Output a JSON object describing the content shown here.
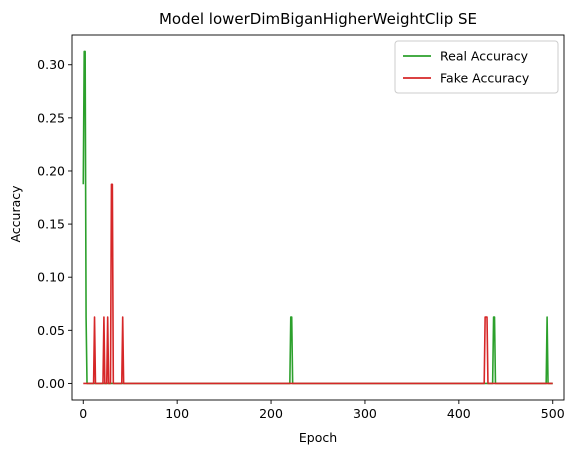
{
  "chart_data": {
    "type": "line",
    "title": "Model lowerDimBiganHigherWeightClip SE",
    "xlabel": "Epoch",
    "ylabel": "Accuracy",
    "xlim": [
      -12,
      512
    ],
    "ylim": [
      -0.0156,
      0.328
    ],
    "xticks": [
      0,
      100,
      200,
      300,
      400,
      500
    ],
    "yticks": [
      0.0,
      0.05,
      0.1,
      0.15,
      0.2,
      0.25,
      0.3
    ],
    "ytick_labels": [
      "0.00",
      "0.05",
      "0.10",
      "0.15",
      "0.20",
      "0.25",
      "0.30"
    ],
    "xtick_labels": [
      "0",
      "100",
      "200",
      "300",
      "400",
      "500"
    ],
    "grid": false,
    "legend_position": "top-right",
    "series": [
      {
        "name": "Real Accuracy",
        "color": "#2ca02c",
        "x": [
          0,
          1,
          2,
          3,
          4,
          220,
          221,
          222,
          223,
          436,
          437,
          438,
          439,
          493,
          494,
          495,
          500
        ],
        "y": [
          0.1875,
          0.3125,
          0.3125,
          0.0625,
          0.0,
          0.0,
          0.0625,
          0.0625,
          0.0,
          0.0,
          0.0625,
          0.0625,
          0.0,
          0.0,
          0.0625,
          0.0,
          0.0
        ]
      },
      {
        "name": "Fake Accuracy",
        "color": "#d62728",
        "x": [
          0,
          11,
          12,
          13,
          21,
          22,
          23,
          25,
          26,
          27,
          29,
          30,
          31,
          32,
          33,
          41,
          42,
          43,
          427,
          428,
          429,
          430,
          431,
          500
        ],
        "y": [
          0.0,
          0.0,
          0.0625,
          0.0,
          0.0,
          0.0625,
          0.0,
          0.0,
          0.0625,
          0.0,
          0.0,
          0.1875,
          0.1875,
          0.0,
          0.0,
          0.0,
          0.0625,
          0.0,
          0.0,
          0.0625,
          0.0625,
          0.0625,
          0.0,
          0.0
        ]
      }
    ]
  }
}
